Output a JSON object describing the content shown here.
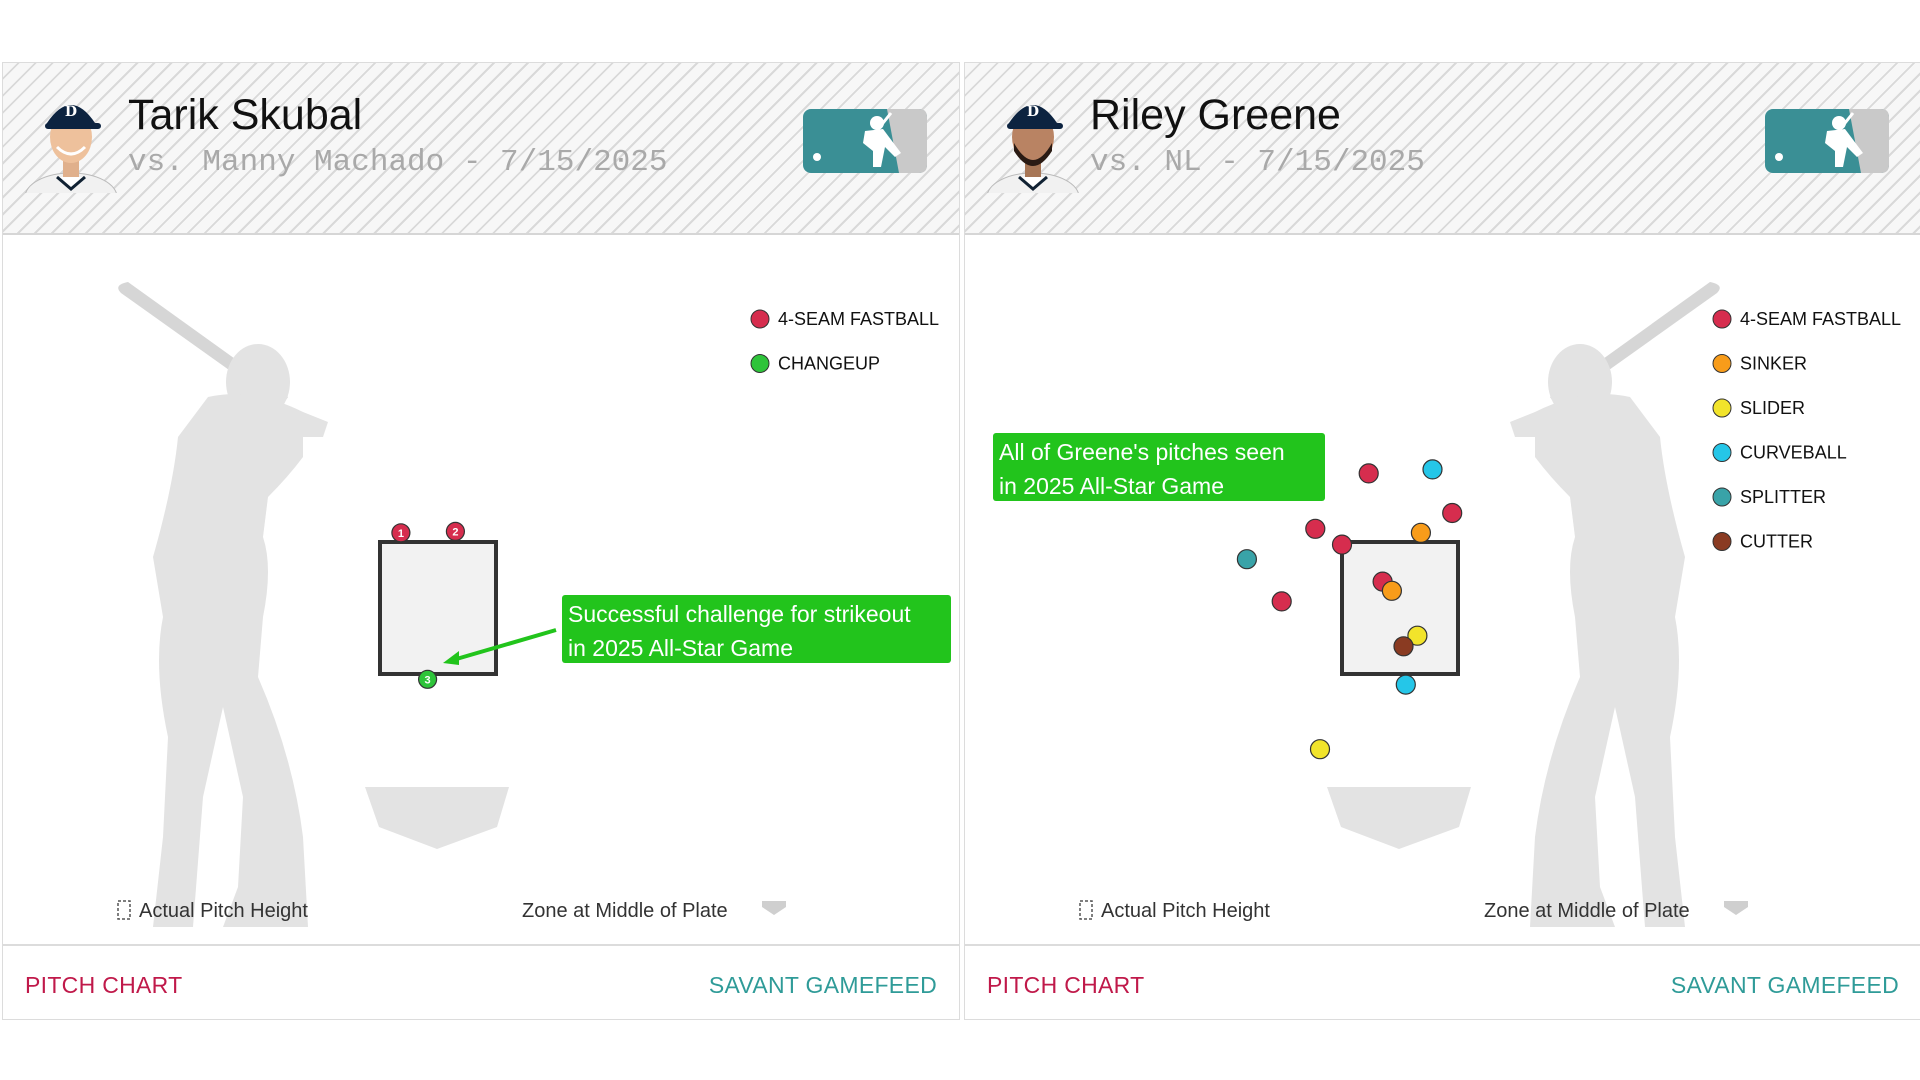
{
  "colors": {
    "four_seam_fastball": "#d62d4e",
    "changeup": "#2ec43a",
    "sinker": "#f89c1a",
    "slider": "#f2e42b",
    "curveball": "#25c6e8",
    "splitter": "#39a3a8",
    "cutter": "#8a3b22",
    "callout_bg": "#22c41c",
    "footer_left": "#c0194a",
    "footer_right": "#2f9b98"
  },
  "cards": [
    {
      "player_name": "Tarik Skubal",
      "matchup": "vs. Manny Machado - 7/15/2025",
      "batter_side": "left-of-plate",
      "legend": [
        {
          "label": "4-SEAM FASTBALL",
          "color": "#d62d4e"
        },
        {
          "label": "CHANGEUP",
          "color": "#2ec43a"
        }
      ],
      "callout": {
        "line1": "Successful challenge for strikeout",
        "line2": "in 2025 All-Star Game"
      },
      "caption_left": "Actual Pitch Height",
      "caption_right": "Zone at Middle of Plate",
      "footer_left": "PITCH CHART",
      "footer_right": "SAVANT GAMEFEED",
      "chart_data": {
        "type": "scatter",
        "description_units": "zone-relative: x 0=left edge,1=right edge; y 0=bottom,1=top",
        "points": [
          {
            "number": "1",
            "pitch_type": "4-SEAM FASTBALL",
            "x": 0.18,
            "y": 1.07
          },
          {
            "number": "2",
            "pitch_type": "4-SEAM FASTBALL",
            "x": 0.65,
            "y": 1.08
          },
          {
            "number": "3",
            "pitch_type": "CHANGEUP",
            "x": 0.41,
            "y": -0.04
          }
        ]
      }
    },
    {
      "player_name": "Riley Greene",
      "matchup": "vs. NL - 7/15/2025",
      "batter_side": "right-of-plate",
      "legend": [
        {
          "label": "4-SEAM FASTBALL",
          "color": "#d62d4e"
        },
        {
          "label": "SINKER",
          "color": "#f89c1a"
        },
        {
          "label": "SLIDER",
          "color": "#f2e42b"
        },
        {
          "label": "CURVEBALL",
          "color": "#25c6e8"
        },
        {
          "label": "SPLITTER",
          "color": "#39a3a8"
        },
        {
          "label": "CUTTER",
          "color": "#8a3b22"
        }
      ],
      "callout": {
        "line1": "All of Greene's pitches seen",
        "line2": "in 2025 All-Star Game"
      },
      "caption_left": "Actual Pitch Height",
      "caption_right": "Zone at Middle of Plate",
      "footer_left": "PITCH CHART",
      "footer_right": "SAVANT GAMEFEED",
      "chart_data": {
        "type": "scatter",
        "description_units": "zone-relative: x 0=left edge,1=right edge; y 0=bottom,1=top",
        "points": [
          {
            "number": "",
            "pitch_type": "4-SEAM FASTBALL",
            "x": 0.23,
            "y": 1.52
          },
          {
            "number": "",
            "pitch_type": "CURVEBALL",
            "x": 0.78,
            "y": 1.55
          },
          {
            "number": "",
            "pitch_type": "4-SEAM FASTBALL",
            "x": 0.95,
            "y": 1.22
          },
          {
            "number": "",
            "pitch_type": "4-SEAM FASTBALL",
            "x": -0.23,
            "y": 1.1
          },
          {
            "number": "",
            "pitch_type": "SINKER",
            "x": 0.68,
            "y": 1.07
          },
          {
            "number": "",
            "pitch_type": "4-SEAM FASTBALL",
            "x": 0.0,
            "y": 0.98
          },
          {
            "number": "",
            "pitch_type": "SPLITTER",
            "x": -0.82,
            "y": 0.87
          },
          {
            "number": "",
            "pitch_type": "4-SEAM FASTBALL",
            "x": 0.35,
            "y": 0.7
          },
          {
            "number": "",
            "pitch_type": "SINKER",
            "x": 0.43,
            "y": 0.63
          },
          {
            "number": "",
            "pitch_type": "4-SEAM FASTBALL",
            "x": -0.52,
            "y": 0.55
          },
          {
            "number": "",
            "pitch_type": "SLIDER",
            "x": 0.65,
            "y": 0.29
          },
          {
            "number": "",
            "pitch_type": "CUTTER",
            "x": 0.53,
            "y": 0.21
          },
          {
            "number": "",
            "pitch_type": "CURVEBALL",
            "x": 0.55,
            "y": -0.08
          },
          {
            "number": "",
            "pitch_type": "SLIDER",
            "x": -0.19,
            "y": -0.57
          }
        ]
      }
    }
  ]
}
